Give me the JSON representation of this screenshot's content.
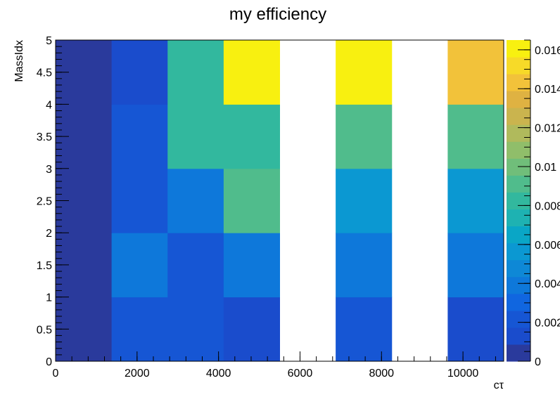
{
  "chart_data": {
    "type": "heatmap",
    "title": "my efficiency",
    "xlabel": "cτ",
    "ylabel": "MassIdx",
    "xlim": [
      0,
      11000
    ],
    "ylim": [
      0,
      5
    ],
    "x_ticks": [
      "0",
      "2000",
      "4000",
      "6000",
      "8000",
      "10000"
    ],
    "y_ticks": [
      "0",
      "0.5",
      "1",
      "1.5",
      "2",
      "2.5",
      "3",
      "3.5",
      "4",
      "4.5",
      "5"
    ],
    "x_bin_edges": [
      0,
      1375,
      2750,
      4125,
      5500,
      6875,
      8250,
      9625,
      11000
    ],
    "y_bin_edges": [
      0,
      1,
      2,
      3,
      4,
      5
    ],
    "z_range": [
      0,
      0.0165
    ],
    "z_ticks_shown": [
      "0",
      "0.002",
      "0.004",
      "0.006",
      "0.008",
      "0.01",
      "0.012",
      "0.014",
      "0.016"
    ],
    "z_tick_labels_visible": [
      "0",
      "0.002",
      "0.004",
      "0.006",
      "0.008",
      "0.01",
      "0.012",
      "0.014",
      "0.016"
    ],
    "z_tick_values": [
      0,
      0.002,
      0.004,
      0.006,
      0.008,
      0.01,
      0.012,
      0.014,
      0.016
    ],
    "colorbar_clipped_labels": [
      "0",
      "0.002",
      "0.004",
      "0.006",
      "0.008",
      "0.01",
      "0.012",
      "0.014",
      "0.016"
    ],
    "values": [
      [
        0.0003,
        0.0025,
        0.0022,
        0.001,
        null,
        0.0025,
        null,
        0.0012
      ],
      [
        0.0003,
        0.004,
        0.002,
        0.004,
        null,
        0.0043,
        null,
        0.004
      ],
      [
        0.0003,
        0.0022,
        0.0038,
        0.0095,
        null,
        0.006,
        null,
        0.006
      ],
      [
        0.0003,
        0.0022,
        0.008,
        0.008,
        null,
        0.0095,
        null,
        0.0095
      ],
      [
        0.0003,
        0.0012,
        0.008,
        0.0165,
        null,
        0.0165,
        null,
        0.0145
      ]
    ],
    "palette": [
      "#2a3a9c",
      "#1a4ccc",
      "#1656d4",
      "#1066e0",
      "#0e78da",
      "#0e88d6",
      "#0b98d2",
      "#0aa6c6",
      "#1eb2b2",
      "#32b89e",
      "#50bc8c",
      "#70be7a",
      "#90be6a",
      "#b0ba5c",
      "#cab44e",
      "#dfb242",
      "#f2c23a",
      "#f7da28",
      "#f8f010"
    ],
    "grid": false,
    "legend": "colorbar-right"
  }
}
